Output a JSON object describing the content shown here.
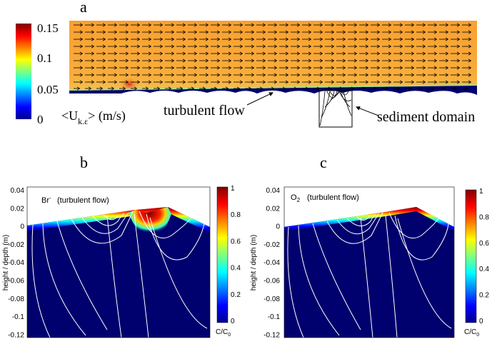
{
  "panel_a": {
    "letter": "a",
    "colorbar_ticks": [
      "0.15",
      "0.1",
      "0.05",
      "0"
    ],
    "colorbar_label_main": "<U",
    "colorbar_label_sub": "k.ε",
    "colorbar_label_end": "> (m/s)",
    "label_turbulent": "turbulent flow",
    "label_sediment": "sediment domain"
  },
  "panel_b": {
    "letter": "b",
    "species": "Br",
    "species_sup": "-",
    "caption": "(turbulent flow)",
    "y_ticks": [
      "0.04",
      "0.02",
      "0",
      "-0.02",
      "-0.04",
      "-0.06",
      "-0.08",
      "-0.1",
      "-0.12"
    ],
    "ylabel": "height / depth (m)",
    "colorbar_ticks": [
      "1",
      "0.8",
      "0.6",
      "0.4",
      "0.2",
      "0"
    ],
    "colorbar_label": "C/C",
    "colorbar_label_sub": "0"
  },
  "panel_c": {
    "letter": "c",
    "species": "O",
    "species_sub": "2",
    "caption": "(turbulent flow)",
    "y_ticks": [
      "0.04",
      "0.02",
      "0",
      "-0.02",
      "-0.04",
      "-0.06",
      "-0.08",
      "-0.1",
      "-0.12"
    ],
    "ylabel": "height / depth (m)",
    "colorbar_ticks": [
      "1",
      "0.8",
      "0.6",
      "0.4",
      "0.2",
      "0"
    ],
    "colorbar_label": "C/C",
    "colorbar_label_sub": "0"
  },
  "colors": {
    "flow_orange": "#f7a835",
    "sediment_blue": "#00006e",
    "streamline": "#ffffff"
  }
}
